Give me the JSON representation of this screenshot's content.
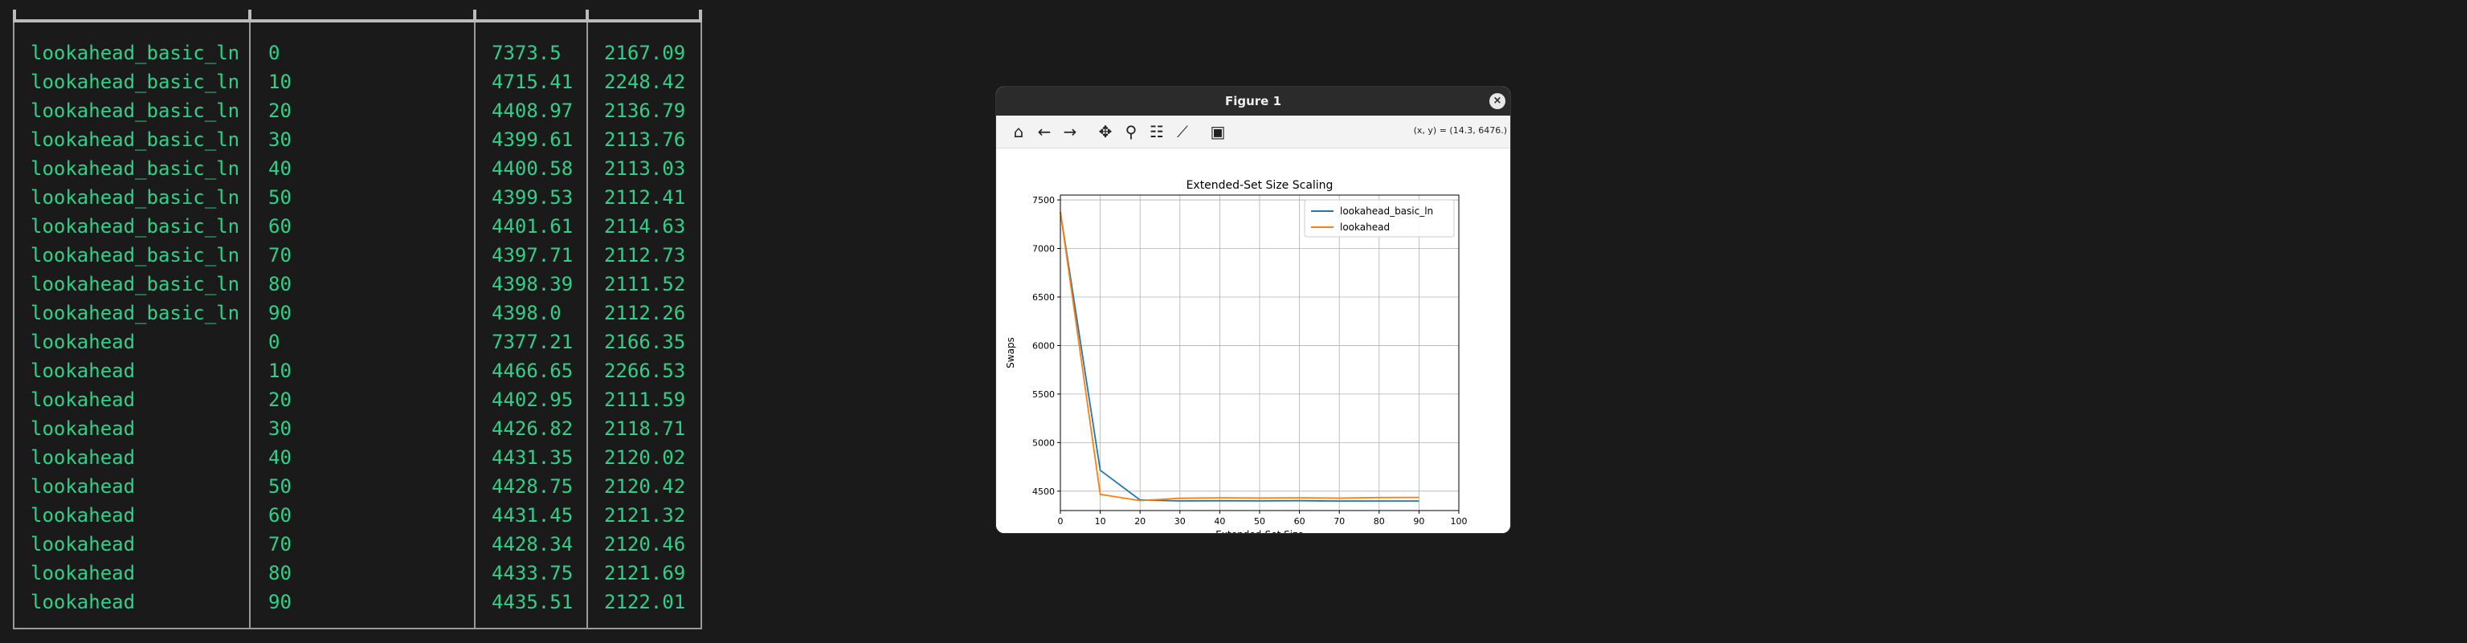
{
  "terminal": {
    "rows": [
      [
        "lookahead_basic_ln",
        "0",
        "7373.5",
        "2167.09"
      ],
      [
        "lookahead_basic_ln",
        "10",
        "4715.41",
        "2248.42"
      ],
      [
        "lookahead_basic_ln",
        "20",
        "4408.97",
        "2136.79"
      ],
      [
        "lookahead_basic_ln",
        "30",
        "4399.61",
        "2113.76"
      ],
      [
        "lookahead_basic_ln",
        "40",
        "4400.58",
        "2113.03"
      ],
      [
        "lookahead_basic_ln",
        "50",
        "4399.53",
        "2112.41"
      ],
      [
        "lookahead_basic_ln",
        "60",
        "4401.61",
        "2114.63"
      ],
      [
        "lookahead_basic_ln",
        "70",
        "4397.71",
        "2112.73"
      ],
      [
        "lookahead_basic_ln",
        "80",
        "4398.39",
        "2111.52"
      ],
      [
        "lookahead_basic_ln",
        "90",
        "4398.0",
        "2112.26"
      ],
      [
        "lookahead",
        "0",
        "7377.21",
        "2166.35"
      ],
      [
        "lookahead",
        "10",
        "4466.65",
        "2266.53"
      ],
      [
        "lookahead",
        "20",
        "4402.95",
        "2111.59"
      ],
      [
        "lookahead",
        "30",
        "4426.82",
        "2118.71"
      ],
      [
        "lookahead",
        "40",
        "4431.35",
        "2120.02"
      ],
      [
        "lookahead",
        "50",
        "4428.75",
        "2120.42"
      ],
      [
        "lookahead",
        "60",
        "4431.45",
        "2121.32"
      ],
      [
        "lookahead",
        "70",
        "4428.34",
        "2120.46"
      ],
      [
        "lookahead",
        "80",
        "4433.75",
        "2121.69"
      ],
      [
        "lookahead",
        "90",
        "4435.51",
        "2122.01"
      ]
    ]
  },
  "window": {
    "title": "Figure 1",
    "close_glyph": "×",
    "coords_readout": "(x, y) = (14.3, 6476.)",
    "toolbar": [
      {
        "icon": "home-icon",
        "glyph": "⌂"
      },
      {
        "icon": "back-icon",
        "glyph": "←"
      },
      {
        "icon": "forward-icon",
        "glyph": "→"
      },
      {
        "icon": "pan-icon",
        "glyph": "✥"
      },
      {
        "icon": "zoom-icon",
        "glyph": "⚲"
      },
      {
        "icon": "subplots-icon",
        "glyph": "☷"
      },
      {
        "icon": "edit-axes-icon",
        "glyph": "⟋"
      },
      {
        "icon": "save-icon",
        "glyph": "▣"
      }
    ]
  },
  "chart_data": {
    "type": "line",
    "title": "Extended-Set Size Scaling",
    "xlabel": "Extended-Set Size",
    "ylabel": "Swaps",
    "xlim": [
      0,
      100
    ],
    "ylim": [
      4300,
      7550
    ],
    "xticks": [
      0,
      10,
      20,
      30,
      40,
      50,
      60,
      70,
      80,
      90,
      100
    ],
    "yticks": [
      4500,
      5000,
      5500,
      6000,
      6500,
      7000,
      7500
    ],
    "grid": true,
    "legend_position": "top-right",
    "x": [
      0,
      10,
      20,
      30,
      40,
      50,
      60,
      70,
      80,
      90
    ],
    "series": [
      {
        "name": "lookahead_basic_ln",
        "color": "#1f77b4",
        "values": [
          7373.5,
          4715.41,
          4408.97,
          4399.61,
          4400.58,
          4399.53,
          4401.61,
          4397.71,
          4398.39,
          4398.0
        ]
      },
      {
        "name": "lookahead",
        "color": "#ff7f0e",
        "values": [
          7377.21,
          4466.65,
          4402.95,
          4426.82,
          4431.35,
          4428.75,
          4431.45,
          4428.34,
          4433.75,
          4435.51
        ]
      }
    ]
  }
}
